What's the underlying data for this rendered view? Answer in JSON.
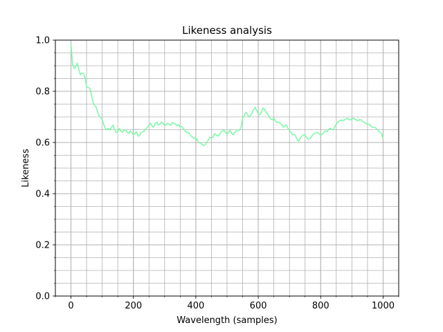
{
  "chart_data": {
    "type": "line",
    "title": "Likeness analysis",
    "xlabel": "Wavelength (samples)",
    "ylabel": "Likeness",
    "xlim": [
      -50,
      1050
    ],
    "ylim": [
      0.0,
      1.0
    ],
    "x_ticks": [
      0,
      200,
      400,
      600,
      800,
      1000
    ],
    "x_tick_labels": [
      "0",
      "200",
      "400",
      "600",
      "800",
      "1000"
    ],
    "y_ticks": [
      0.0,
      0.2,
      0.4,
      0.6,
      0.8,
      1.0
    ],
    "y_tick_labels": [
      "0.0",
      "0.2",
      "0.4",
      "0.6",
      "0.8",
      "1.0"
    ],
    "x_minor_step": 50,
    "y_minor_step": 0.05,
    "grid": true,
    "legend": "none",
    "series": [
      {
        "color": "#7ff9a9",
        "x": [
          0,
          5,
          10,
          15,
          20,
          25,
          30,
          35,
          40,
          45,
          50,
          55,
          60,
          65,
          70,
          75,
          80,
          85,
          90,
          95,
          100,
          105,
          110,
          115,
          120,
          125,
          130,
          135,
          140,
          145,
          150,
          155,
          160,
          165,
          170,
          175,
          180,
          185,
          190,
          195,
          200,
          205,
          210,
          215,
          220,
          225,
          230,
          235,
          240,
          245,
          250,
          255,
          260,
          265,
          270,
          275,
          280,
          285,
          290,
          295,
          300,
          305,
          310,
          315,
          320,
          325,
          330,
          335,
          340,
          345,
          350,
          355,
          360,
          365,
          370,
          375,
          380,
          385,
          390,
          395,
          400,
          405,
          410,
          415,
          420,
          425,
          430,
          435,
          440,
          445,
          450,
          455,
          460,
          465,
          470,
          475,
          480,
          485,
          490,
          495,
          500,
          505,
          510,
          515,
          520,
          525,
          530,
          535,
          540,
          545,
          550,
          555,
          560,
          565,
          570,
          575,
          580,
          585,
          590,
          595,
          600,
          605,
          610,
          615,
          620,
          625,
          630,
          635,
          640,
          645,
          650,
          655,
          660,
          665,
          670,
          675,
          680,
          685,
          690,
          695,
          700,
          705,
          710,
          715,
          720,
          725,
          730,
          735,
          740,
          745,
          750,
          755,
          760,
          765,
          770,
          775,
          780,
          785,
          790,
          795,
          800,
          805,
          810,
          815,
          820,
          825,
          830,
          835,
          840,
          845,
          850,
          855,
          860,
          865,
          870,
          875,
          880,
          885,
          890,
          895,
          900,
          905,
          910,
          915,
          920,
          925,
          930,
          935,
          940,
          945,
          950,
          955,
          960,
          965,
          970,
          975,
          980,
          985,
          990,
          995,
          1000
        ],
        "y": [
          0.985,
          0.905,
          0.89,
          0.895,
          0.91,
          0.885,
          0.865,
          0.872,
          0.868,
          0.855,
          0.82,
          0.815,
          0.812,
          0.79,
          0.76,
          0.745,
          0.74,
          0.72,
          0.702,
          0.698,
          0.69,
          0.67,
          0.655,
          0.65,
          0.655,
          0.648,
          0.66,
          0.668,
          0.65,
          0.638,
          0.642,
          0.655,
          0.645,
          0.64,
          0.648,
          0.65,
          0.64,
          0.635,
          0.645,
          0.64,
          0.63,
          0.635,
          0.642,
          0.625,
          0.628,
          0.64,
          0.642,
          0.645,
          0.652,
          0.66,
          0.668,
          0.675,
          0.665,
          0.66,
          0.675,
          0.68,
          0.668,
          0.672,
          0.68,
          0.675,
          0.665,
          0.67,
          0.675,
          0.67,
          0.668,
          0.678,
          0.675,
          0.672,
          0.665,
          0.67,
          0.66,
          0.662,
          0.655,
          0.645,
          0.64,
          0.64,
          0.635,
          0.625,
          0.62,
          0.615,
          0.618,
          0.608,
          0.6,
          0.598,
          0.592,
          0.588,
          0.592,
          0.6,
          0.61,
          0.62,
          0.618,
          0.62,
          0.635,
          0.63,
          0.625,
          0.628,
          0.64,
          0.645,
          0.648,
          0.64,
          0.632,
          0.64,
          0.648,
          0.635,
          0.63,
          0.64,
          0.645,
          0.65,
          0.648,
          0.66,
          0.695,
          0.705,
          0.718,
          0.71,
          0.7,
          0.705,
          0.715,
          0.728,
          0.738,
          0.725,
          0.712,
          0.708,
          0.718,
          0.735,
          0.73,
          0.718,
          0.712,
          0.7,
          0.692,
          0.688,
          0.695,
          0.685,
          0.678,
          0.68,
          0.675,
          0.67,
          0.66,
          0.665,
          0.668,
          0.655,
          0.648,
          0.638,
          0.63,
          0.632,
          0.625,
          0.61,
          0.605,
          0.618,
          0.625,
          0.63,
          0.628,
          0.62,
          0.612,
          0.615,
          0.622,
          0.63,
          0.635,
          0.638,
          0.64,
          0.635,
          0.628,
          0.632,
          0.64,
          0.645,
          0.642,
          0.648,
          0.655,
          0.652,
          0.648,
          0.66,
          0.672,
          0.68,
          0.685,
          0.688,
          0.685,
          0.688,
          0.69,
          0.695,
          0.69,
          0.688,
          0.692,
          0.695,
          0.69,
          0.688,
          0.685,
          0.69,
          0.688,
          0.682,
          0.678,
          0.675,
          0.67,
          0.672,
          0.665,
          0.66,
          0.66,
          0.658,
          0.652,
          0.645,
          0.64,
          0.635,
          0.615
        ]
      }
    ]
  }
}
